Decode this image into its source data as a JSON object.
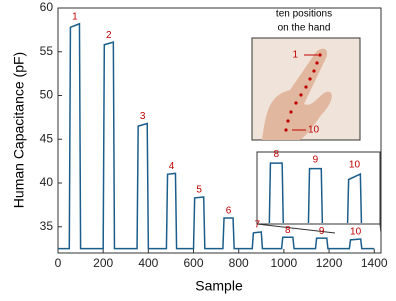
{
  "chart_data": {
    "type": "line",
    "x_label": "Sample",
    "y_label": "Human Capacitance (pF)",
    "x": [
      0,
      50,
      55,
      95,
      100,
      200,
      205,
      245,
      250,
      350,
      355,
      395,
      400,
      480,
      485,
      520,
      525,
      600,
      605,
      645,
      650,
      730,
      735,
      775,
      780,
      860,
      865,
      900,
      905,
      990,
      995,
      1040,
      1045,
      1140,
      1145,
      1190,
      1195,
      1290,
      1295,
      1340,
      1345,
      1400
    ],
    "series": [
      {
        "color": "#1b5e8c",
        "values": [
          32.5,
          32.5,
          57.8,
          58.2,
          32.5,
          32.5,
          55.8,
          56.1,
          32.5,
          32.5,
          46.5,
          46.8,
          32.5,
          32.5,
          41,
          41.1,
          32.5,
          32.5,
          38.3,
          38.4,
          32.5,
          32.5,
          36,
          36,
          32.5,
          32.5,
          34.3,
          34.4,
          32.5,
          32.5,
          33.8,
          33.8,
          32.5,
          32.5,
          33.7,
          33.7,
          32.5,
          32.5,
          33.5,
          33.6,
          32.5,
          32.5
        ]
      }
    ],
    "peak_labels": [
      "1",
      "2",
      "3",
      "4",
      "5",
      "6",
      "7",
      "8",
      "9",
      "10"
    ],
    "inset_title": [
      "ten positions",
      "on the hand"
    ],
    "xlim": [
      0,
      1430
    ],
    "ylim": [
      32,
      60
    ],
    "xticks": [
      0,
      200,
      400,
      600,
      800,
      1000,
      1200,
      1400
    ],
    "yticks": [
      35,
      40,
      45,
      50,
      55,
      60
    ]
  }
}
